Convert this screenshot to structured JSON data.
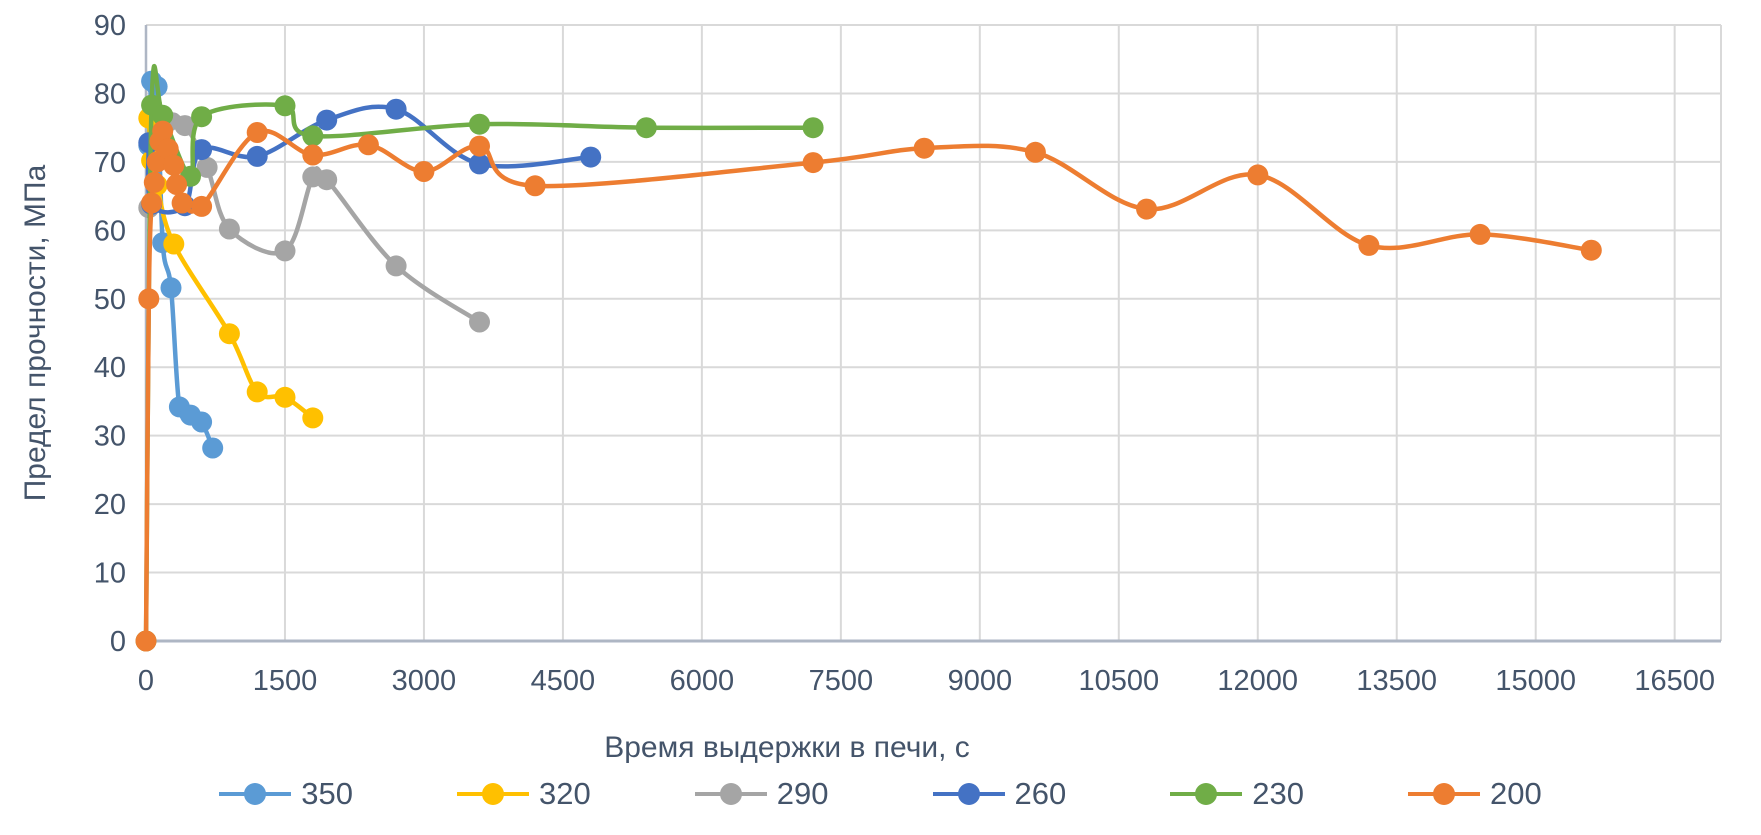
{
  "y_axis": {
    "title": "Предел прочности, МПа",
    "min": 0,
    "max": 90,
    "ticks": [
      0,
      10,
      20,
      30,
      40,
      50,
      60,
      70,
      80,
      90
    ]
  },
  "x_axis": {
    "title": "Время выдержки в печи, с",
    "min": 0,
    "max": 17000,
    "ticks": [
      0,
      1500,
      3000,
      4500,
      6000,
      7500,
      9000,
      10500,
      12000,
      13500,
      15000,
      16500
    ]
  },
  "style": {
    "text_color": "#44546A",
    "grid_color": "#D9D9D9",
    "axis_color": "#AEB6C4",
    "background": "#FFFFFF"
  },
  "chart_data": {
    "type": "line",
    "smooth": true,
    "grid": true,
    "legend_position": "bottom",
    "xlabel": "Время выдержки в печи, с",
    "ylabel": "Предел прочности, МПа",
    "xlim": [
      0,
      17000
    ],
    "ylim": [
      0,
      90
    ],
    "series": [
      {
        "name": "350",
        "color": "#5B9BD5",
        "points": [
          [
            30,
            72.4
          ],
          [
            60,
            81.8
          ],
          [
            120,
            81.0
          ],
          [
            180,
            58.2
          ],
          [
            270,
            51.6
          ],
          [
            360,
            34.2
          ],
          [
            480,
            33.0
          ],
          [
            600,
            32.0
          ],
          [
            720,
            28.2
          ]
        ]
      },
      {
        "name": "320",
        "color": "#FFC000",
        "points": [
          [
            30,
            76.4
          ],
          [
            60,
            70.2
          ],
          [
            120,
            66.6
          ],
          [
            300,
            58.0
          ],
          [
            900,
            44.9
          ],
          [
            1200,
            36.4
          ],
          [
            1500,
            35.6
          ],
          [
            1800,
            32.6
          ]
        ]
      },
      {
        "name": "290",
        "color": "#A5A5A5",
        "points": [
          [
            30,
            63.3
          ],
          [
            240,
            75.9
          ],
          [
            420,
            75.3
          ],
          [
            660,
            69.2
          ],
          [
            900,
            60.2
          ],
          [
            1500,
            57.0
          ],
          [
            1800,
            67.8
          ],
          [
            1950,
            67.4
          ],
          [
            2700,
            54.8
          ],
          [
            3600,
            46.6
          ]
        ]
      },
      {
        "name": "260",
        "color": "#4472C4",
        "points": [
          [
            30,
            72.8
          ],
          [
            60,
            63.8
          ],
          [
            420,
            63.6
          ],
          [
            600,
            71.8
          ],
          [
            1200,
            70.8
          ],
          [
            1950,
            76.1
          ],
          [
            2700,
            77.7
          ],
          [
            3600,
            69.7
          ],
          [
            4800,
            70.7
          ]
        ]
      },
      {
        "name": "230",
        "color": "#70AD47",
        "points": [
          [
            0,
            0
          ],
          [
            60,
            78.3
          ],
          [
            180,
            76.8
          ],
          [
            480,
            67.9
          ],
          [
            600,
            76.6
          ],
          [
            1500,
            78.2
          ],
          [
            1800,
            73.8
          ],
          [
            3600,
            75.5
          ],
          [
            5400,
            75.0
          ],
          [
            7200,
            75.0
          ]
        ]
      },
      {
        "name": "200",
        "color": "#ED7D31",
        "points": [
          [
            0,
            0
          ],
          [
            30,
            50.0
          ],
          [
            60,
            64.0
          ],
          [
            90,
            67.0
          ],
          [
            120,
            70.0
          ],
          [
            150,
            73.0
          ],
          [
            180,
            74.5
          ],
          [
            240,
            71.9
          ],
          [
            300,
            69.5
          ],
          [
            330,
            66.7
          ],
          [
            390,
            64.0
          ],
          [
            600,
            63.5
          ],
          [
            1200,
            74.3
          ],
          [
            1800,
            71.0
          ],
          [
            2400,
            72.5
          ],
          [
            3000,
            68.6
          ],
          [
            3600,
            72.3
          ],
          [
            4200,
            66.5
          ],
          [
            7200,
            69.9
          ],
          [
            8400,
            72.0
          ],
          [
            9600,
            71.4
          ],
          [
            10800,
            63.1
          ],
          [
            12000,
            68.1
          ],
          [
            13200,
            57.8
          ],
          [
            14400,
            59.4
          ],
          [
            15600,
            57.1
          ]
        ]
      }
    ]
  }
}
